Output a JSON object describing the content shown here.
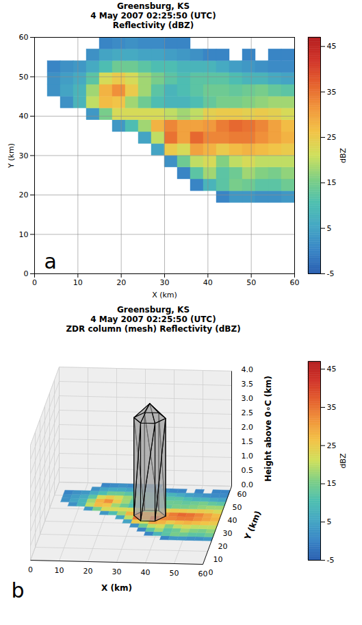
{
  "chart_data": [
    {
      "type": "heatmap",
      "title": [
        "Greensburg, KS",
        "4 May 2007 02:25:50 (UTC)",
        "Reflectivity (dBZ)"
      ],
      "panel_label": "a",
      "xlabel": "X (km)",
      "ylabel": "Y (km)",
      "xlim": [
        0,
        60
      ],
      "ylim": [
        0,
        60
      ],
      "xticks": [
        0,
        10,
        20,
        30,
        40,
        50,
        60
      ],
      "yticks": [
        0,
        10,
        20,
        30,
        40,
        50,
        60
      ],
      "grid": true,
      "colorbar": {
        "label": "dBZ",
        "range": [
          -5,
          47
        ],
        "ticks": [
          -5,
          5,
          15,
          25,
          35,
          45
        ]
      },
      "cells": {
        "x_edges": [
          0,
          3,
          6,
          9,
          12,
          15,
          18,
          21,
          24,
          27,
          30,
          33,
          36,
          39,
          42,
          45,
          48,
          51,
          54,
          57,
          60
        ],
        "y_edges": [
          18,
          21,
          24,
          27,
          30,
          33,
          36,
          39,
          42,
          45,
          48,
          51,
          54,
          57,
          60
        ],
        "values": [
          [
            null,
            null,
            null,
            null,
            null,
            null,
            null,
            null,
            null,
            null,
            null,
            null,
            null,
            null,
            0,
            3,
            3,
            2,
            2,
            3
          ],
          [
            null,
            null,
            null,
            null,
            null,
            null,
            null,
            null,
            null,
            null,
            null,
            null,
            0,
            8,
            12,
            15,
            14,
            12,
            12,
            14
          ],
          [
            null,
            null,
            null,
            null,
            null,
            null,
            null,
            null,
            null,
            null,
            null,
            0,
            12,
            18,
            12,
            14,
            18,
            16,
            15,
            17
          ],
          [
            null,
            null,
            null,
            null,
            null,
            null,
            null,
            null,
            null,
            null,
            2,
            14,
            20,
            22,
            16,
            20,
            22,
            20,
            20,
            20
          ],
          [
            null,
            null,
            null,
            null,
            null,
            null,
            null,
            null,
            null,
            5,
            25,
            22,
            30,
            28,
            25,
            27,
            28,
            27,
            26,
            25
          ],
          [
            null,
            null,
            null,
            null,
            null,
            null,
            null,
            null,
            5,
            20,
            35,
            30,
            36,
            33,
            33,
            34,
            34,
            32,
            30,
            28
          ],
          [
            null,
            null,
            null,
            null,
            null,
            null,
            3,
            10,
            18,
            28,
            33,
            30,
            30,
            31,
            34,
            36,
            35,
            33,
            30,
            27
          ],
          [
            null,
            null,
            null,
            null,
            3,
            15,
            22,
            22,
            22,
            22,
            20,
            18,
            20,
            24,
            25,
            25,
            24,
            25,
            24,
            22
          ],
          [
            null,
            null,
            2,
            8,
            20,
            27,
            26,
            18,
            14,
            10,
            8,
            8,
            10,
            13,
            15,
            15,
            16,
            17,
            18,
            18
          ],
          [
            null,
            2,
            5,
            8,
            18,
            28,
            32,
            25,
            18,
            12,
            8,
            10,
            12,
            14,
            14,
            13,
            14,
            15,
            13,
            12
          ],
          [
            null,
            2,
            4,
            6,
            12,
            22,
            25,
            22,
            18,
            15,
            12,
            10,
            12,
            12,
            12,
            10,
            8,
            8,
            6,
            5
          ],
          [
            null,
            0,
            2,
            3,
            6,
            10,
            14,
            14,
            12,
            10,
            10,
            8,
            8,
            8,
            6,
            4,
            3,
            2,
            1,
            1
          ],
          [
            null,
            null,
            null,
            null,
            2,
            5,
            6,
            6,
            5,
            5,
            4,
            3,
            2,
            0,
            0,
            null,
            0,
            null,
            0,
            0
          ],
          [
            null,
            null,
            null,
            null,
            null,
            0,
            1,
            2,
            1,
            1,
            0,
            0,
            null,
            null,
            null,
            null,
            null,
            null,
            null,
            null
          ]
        ]
      }
    },
    {
      "type": "3d",
      "title": [
        "Greensburg, KS",
        "4 May 2007 02:25:50 (UTC)",
        "ZDR column (mesh) Reflectivity (dBZ)"
      ],
      "panel_label": "b",
      "xlabel": "X (km)",
      "ylabel": "Y (km)",
      "zlabel": "Height above 0∘C (km)",
      "xlim": [
        0,
        60
      ],
      "ylim": [
        0,
        60
      ],
      "zlim": [
        0,
        4
      ],
      "xticks": [
        0,
        10,
        20,
        30,
        40,
        50,
        60
      ],
      "yticks": [
        0,
        10,
        20,
        30,
        40,
        50,
        60
      ],
      "zticks": [
        {
          "value": 0,
          "label": "0.0"
        },
        0.5,
        {
          "value": 1,
          "label": "1.0"
        },
        1.5,
        {
          "value": 2,
          "label": "2.0"
        },
        2.5,
        {
          "value": 3,
          "label": "3.0"
        },
        3.5,
        {
          "value": 4,
          "label": "4.0"
        }
      ],
      "grid": true,
      "colorbar": {
        "label": "dBZ",
        "range": [
          -5,
          47
        ],
        "ticks": [
          -5,
          5,
          15,
          25,
          35,
          45
        ]
      },
      "zdr_column": {
        "x": [
          30,
          33,
          38,
          41,
          38,
          33
        ],
        "y": [
          36,
          32,
          32,
          36,
          40,
          40
        ],
        "z_bottom": 0,
        "z_top": 3.4,
        "apex": {
          "x": 35.5,
          "y": 36,
          "z": 3.9
        }
      },
      "cells": {
        "x_edges": [
          0,
          3,
          6,
          9,
          12,
          15,
          18,
          21,
          24,
          27,
          30,
          33,
          36,
          39,
          42,
          45,
          48,
          51,
          54,
          57,
          60
        ],
        "y_edges": [
          18,
          21,
          24,
          27,
          30,
          33,
          36,
          39,
          42,
          45,
          48,
          51,
          54,
          57,
          60
        ],
        "values": [
          [
            null,
            null,
            null,
            null,
            null,
            null,
            null,
            null,
            null,
            null,
            null,
            null,
            null,
            null,
            0,
            3,
            3,
            2,
            2,
            3
          ],
          [
            null,
            null,
            null,
            null,
            null,
            null,
            null,
            null,
            null,
            null,
            null,
            null,
            0,
            8,
            12,
            15,
            14,
            12,
            12,
            14
          ],
          [
            null,
            null,
            null,
            null,
            null,
            null,
            null,
            null,
            null,
            null,
            null,
            0,
            12,
            18,
            12,
            14,
            18,
            16,
            15,
            17
          ],
          [
            null,
            null,
            null,
            null,
            null,
            null,
            null,
            null,
            null,
            null,
            2,
            14,
            20,
            22,
            16,
            20,
            22,
            20,
            20,
            20
          ],
          [
            null,
            null,
            null,
            null,
            null,
            null,
            null,
            null,
            null,
            5,
            25,
            22,
            30,
            28,
            25,
            27,
            28,
            27,
            26,
            25
          ],
          [
            null,
            null,
            null,
            null,
            null,
            null,
            null,
            null,
            5,
            20,
            35,
            30,
            36,
            33,
            33,
            34,
            34,
            32,
            30,
            28
          ],
          [
            null,
            null,
            null,
            null,
            null,
            null,
            3,
            10,
            18,
            28,
            33,
            30,
            30,
            31,
            34,
            36,
            35,
            33,
            30,
            27
          ],
          [
            null,
            null,
            null,
            null,
            3,
            15,
            22,
            22,
            22,
            22,
            20,
            18,
            20,
            24,
            25,
            25,
            24,
            25,
            24,
            22
          ],
          [
            null,
            null,
            2,
            8,
            20,
            27,
            26,
            18,
            14,
            10,
            8,
            8,
            10,
            13,
            15,
            15,
            16,
            17,
            18,
            18
          ],
          [
            null,
            2,
            5,
            8,
            18,
            28,
            32,
            25,
            18,
            12,
            8,
            10,
            12,
            14,
            14,
            13,
            14,
            15,
            13,
            12
          ],
          [
            null,
            2,
            4,
            6,
            12,
            22,
            25,
            22,
            18,
            15,
            12,
            10,
            12,
            12,
            12,
            10,
            8,
            8,
            6,
            5
          ],
          [
            null,
            0,
            2,
            3,
            6,
            10,
            14,
            14,
            12,
            10,
            10,
            8,
            8,
            8,
            6,
            4,
            3,
            2,
            1,
            1
          ],
          [
            null,
            null,
            null,
            null,
            2,
            5,
            6,
            6,
            5,
            5,
            4,
            3,
            2,
            0,
            0,
            null,
            0,
            null,
            0,
            0
          ],
          [
            null,
            null,
            null,
            null,
            null,
            0,
            1,
            2,
            1,
            1,
            0,
            0,
            null,
            null,
            null,
            null,
            null,
            null,
            null,
            null
          ]
        ]
      }
    }
  ]
}
